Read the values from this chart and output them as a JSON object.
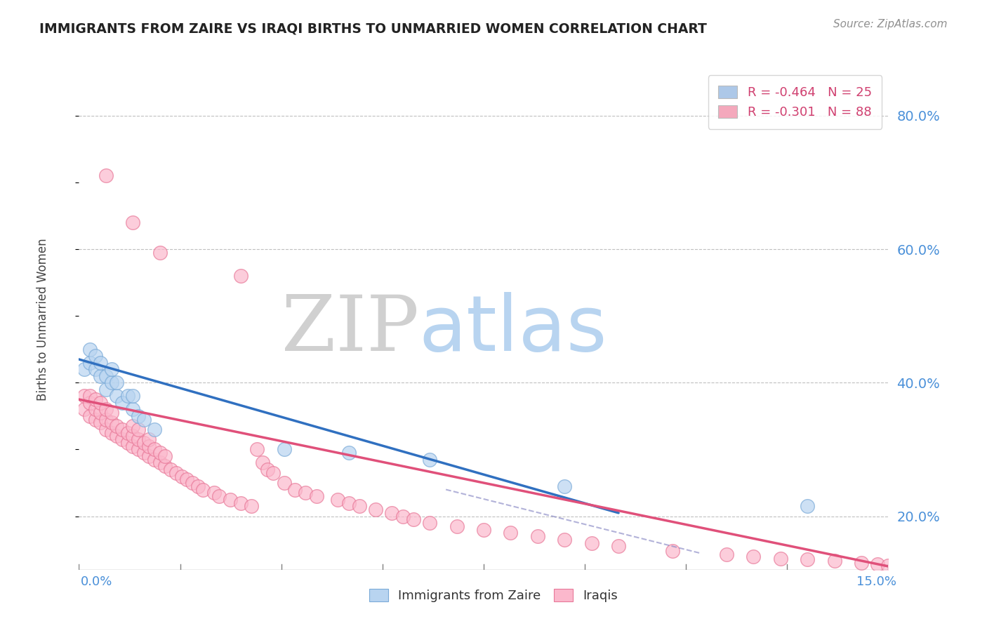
{
  "title": "IMMIGRANTS FROM ZAIRE VS IRAQI BIRTHS TO UNMARRIED WOMEN CORRELATION CHART",
  "source_text": "Source: ZipAtlas.com",
  "xlabel_bottom_left": "0.0%",
  "xlabel_bottom_right": "15.0%",
  "ylabel": "Births to Unmarried Women",
  "ytick_values": [
    0.2,
    0.4,
    0.6,
    0.8
  ],
  "xmin": 0.0,
  "xmax": 0.15,
  "ymin": 0.12,
  "ymax": 0.87,
  "legend_entries": [
    {
      "label": "R = -0.464   N = 25",
      "color": "#adc8e8"
    },
    {
      "label": "R = -0.301   N = 88",
      "color": "#f4a8bc"
    }
  ],
  "watermark_zip": "ZIP",
  "watermark_atlas": "atlas",
  "watermark_zip_color": "#d0d0d0",
  "watermark_atlas_color": "#b8d4f0",
  "blue_scatter_x": [
    0.001,
    0.002,
    0.002,
    0.003,
    0.003,
    0.004,
    0.004,
    0.005,
    0.005,
    0.006,
    0.006,
    0.007,
    0.007,
    0.008,
    0.009,
    0.01,
    0.01,
    0.011,
    0.012,
    0.014,
    0.038,
    0.05,
    0.065,
    0.09,
    0.135
  ],
  "blue_scatter_y": [
    0.42,
    0.43,
    0.45,
    0.42,
    0.44,
    0.41,
    0.43,
    0.39,
    0.41,
    0.4,
    0.42,
    0.38,
    0.4,
    0.37,
    0.38,
    0.36,
    0.38,
    0.35,
    0.345,
    0.33,
    0.3,
    0.295,
    0.285,
    0.245,
    0.215
  ],
  "pink_scatter_x": [
    0.001,
    0.001,
    0.002,
    0.002,
    0.002,
    0.003,
    0.003,
    0.003,
    0.004,
    0.004,
    0.004,
    0.005,
    0.005,
    0.005,
    0.006,
    0.006,
    0.006,
    0.007,
    0.007,
    0.008,
    0.008,
    0.009,
    0.009,
    0.01,
    0.01,
    0.01,
    0.011,
    0.011,
    0.011,
    0.012,
    0.012,
    0.013,
    0.013,
    0.013,
    0.014,
    0.014,
    0.015,
    0.015,
    0.016,
    0.016,
    0.017,
    0.018,
    0.019,
    0.02,
    0.021,
    0.022,
    0.023,
    0.025,
    0.026,
    0.028,
    0.03,
    0.032,
    0.033,
    0.034,
    0.035,
    0.036,
    0.038,
    0.04,
    0.042,
    0.044,
    0.048,
    0.05,
    0.052,
    0.055,
    0.058,
    0.06,
    0.062,
    0.065,
    0.07,
    0.075,
    0.08,
    0.085,
    0.09,
    0.095,
    0.1,
    0.11,
    0.12,
    0.125,
    0.13,
    0.135,
    0.14,
    0.145,
    0.148,
    0.15,
    0.005,
    0.01,
    0.015,
    0.03
  ],
  "pink_scatter_y": [
    0.36,
    0.38,
    0.35,
    0.37,
    0.38,
    0.345,
    0.36,
    0.375,
    0.34,
    0.355,
    0.37,
    0.33,
    0.345,
    0.36,
    0.325,
    0.34,
    0.355,
    0.32,
    0.335,
    0.315,
    0.33,
    0.31,
    0.325,
    0.305,
    0.32,
    0.335,
    0.3,
    0.315,
    0.33,
    0.295,
    0.31,
    0.29,
    0.305,
    0.315,
    0.285,
    0.3,
    0.28,
    0.295,
    0.275,
    0.29,
    0.27,
    0.265,
    0.26,
    0.255,
    0.25,
    0.245,
    0.24,
    0.235,
    0.23,
    0.225,
    0.22,
    0.215,
    0.3,
    0.28,
    0.27,
    0.265,
    0.25,
    0.24,
    0.235,
    0.23,
    0.225,
    0.22,
    0.215,
    0.21,
    0.205,
    0.2,
    0.195,
    0.19,
    0.185,
    0.18,
    0.175,
    0.17,
    0.165,
    0.16,
    0.155,
    0.148,
    0.143,
    0.14,
    0.137,
    0.135,
    0.133,
    0.13,
    0.128,
    0.126,
    0.71,
    0.64,
    0.595,
    0.56
  ],
  "blue_line_x": [
    0.0,
    0.1
  ],
  "blue_line_y": [
    0.435,
    0.205
  ],
  "pink_line_x": [
    0.0,
    0.15
  ],
  "pink_line_y": [
    0.375,
    0.125
  ],
  "dashed_line_x": [
    0.068,
    0.115
  ],
  "dashed_line_y": [
    0.24,
    0.145
  ],
  "num_xticks": 9
}
